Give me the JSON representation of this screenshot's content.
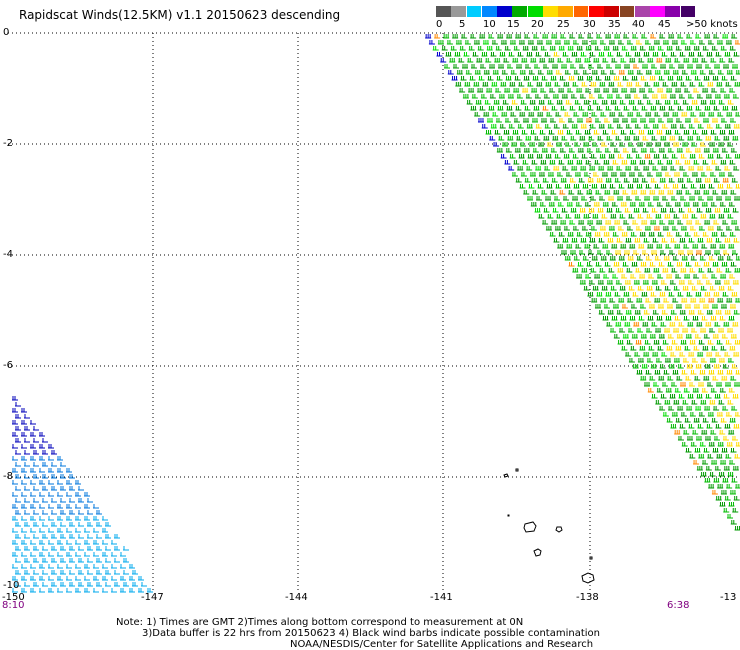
{
  "title": "Rapidscat Winds(12.5KM) v1.1 20150623 descending",
  "legend": {
    "ticks": [
      "0",
      "5",
      "10",
      "15",
      "20",
      "25",
      "30",
      "35",
      "40",
      "45",
      ">50 knots"
    ],
    "colors": [
      "#555555",
      "#999999",
      "#00ccff",
      "#0088ff",
      "#0000cc",
      "#00aa00",
      "#00dd00",
      "#ffdd00",
      "#ffaa00",
      "#ff6600",
      "#ff0000",
      "#cc0000",
      "#884422",
      "#aa44aa",
      "#ff00ff",
      "#8800aa",
      "#440066"
    ]
  },
  "axes": {
    "y_labels": [
      "0",
      "-2",
      "-4",
      "-6",
      "-8",
      "-10"
    ],
    "x_labels": [
      "-150",
      "-147",
      "-144",
      "-141",
      "-138",
      "-13"
    ]
  },
  "time_left": "8:10",
  "time_right": "6:38",
  "notes": {
    "line1": "Note: 1) Times are GMT 2)Times along bottom correspond to measurement at 0N",
    "line2": "3)Data buffer is 22 hrs from 20150623 4) Black wind barbs indicate possible contamination",
    "line3": "NOAA/NESDIS/Center for Satellite Applications and Research"
  }
}
